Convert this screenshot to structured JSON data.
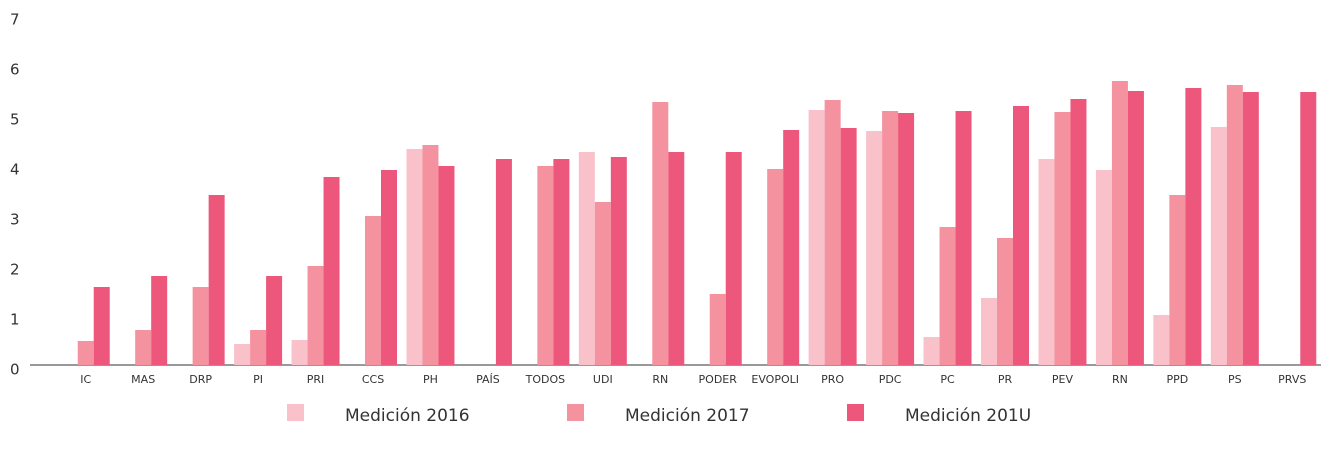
{
  "chart_data": {
    "type": "bar",
    "categories": [
      "IC",
      "MAS",
      "DRP",
      "PI",
      "PRI",
      "CCS",
      "PH",
      "PAÍS",
      "TODOS",
      "UDI",
      "RN",
      "PODER",
      "EVOPOLI",
      "PRO",
      "PDC",
      "PC",
      "PR",
      "PEV",
      "RN",
      "PPD",
      "PS",
      "PRVS"
    ],
    "series": [
      {
        "name": "Medición 2016",
        "color": "#f9c2cb",
        "values": [
          null,
          null,
          null,
          0.48,
          0.56,
          null,
          4.38,
          null,
          null,
          4.32,
          null,
          null,
          null,
          5.16,
          4.74,
          0.62,
          1.4,
          4.18,
          3.96,
          1.06,
          4.82,
          null
        ]
      },
      {
        "name": "Medición 2017",
        "color": "#f5929f",
        "values": [
          0.54,
          0.76,
          1.62,
          0.76,
          2.04,
          3.04,
          4.46,
          null,
          4.04,
          3.32,
          5.32,
          1.48,
          3.98,
          5.36,
          5.14,
          2.82,
          2.6,
          5.12,
          5.74,
          3.46,
          5.66,
          null
        ]
      },
      {
        "name": "Medición 201U",
        "color": "#ed577b",
        "values": [
          1.62,
          1.84,
          3.46,
          1.84,
          3.82,
          3.96,
          4.04,
          4.18,
          4.18,
          4.22,
          4.32,
          4.32,
          4.76,
          4.8,
          5.1,
          5.14,
          5.24,
          5.38,
          5.54,
          5.6,
          5.52,
          5.52
        ]
      }
    ],
    "ylim": [
      0,
      7
    ],
    "yticks": [
      0,
      1,
      2,
      3,
      4,
      5,
      6,
      7
    ]
  }
}
